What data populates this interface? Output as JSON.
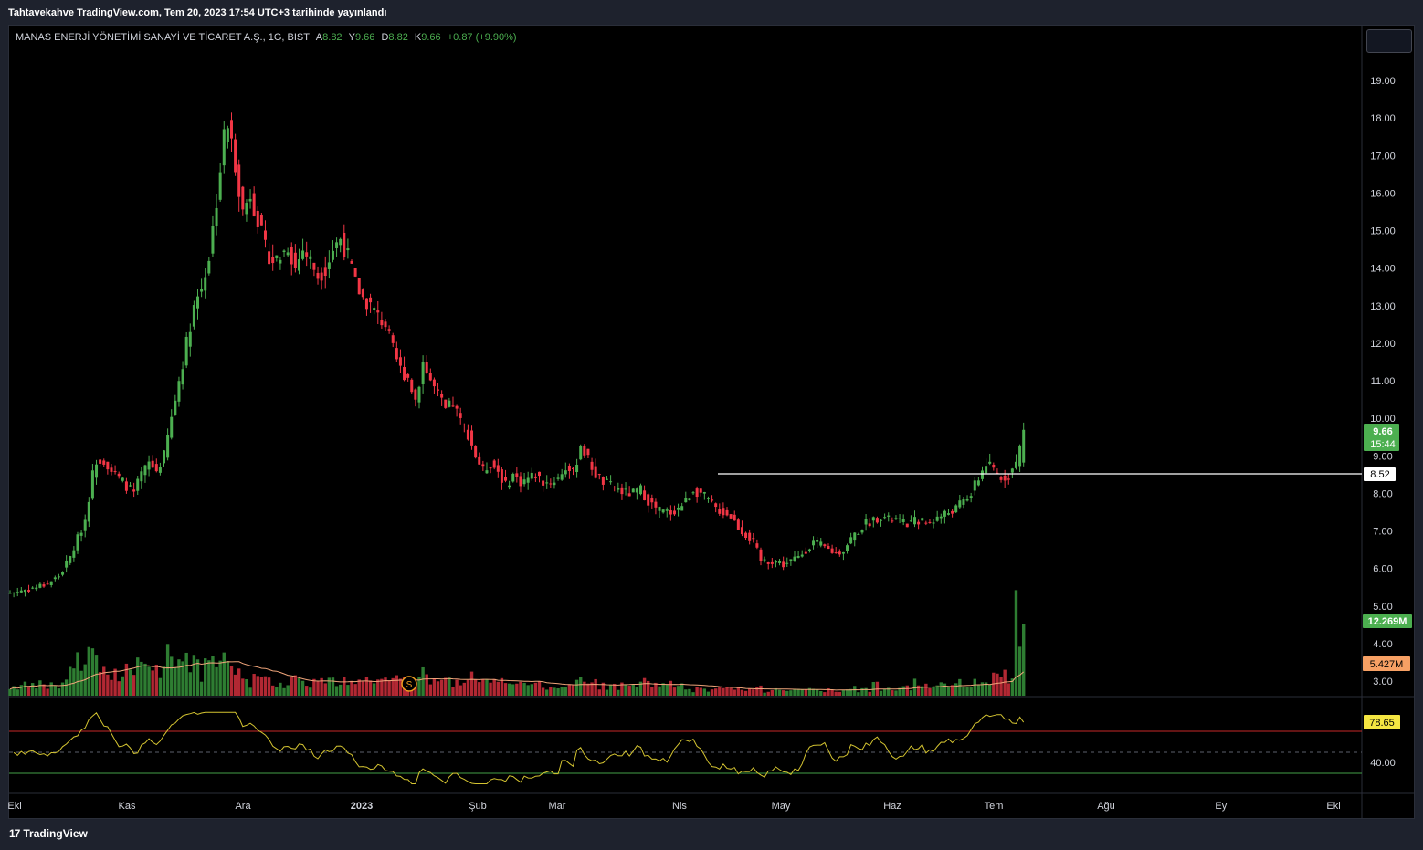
{
  "header": {
    "published": "Tahtavekahve TradingView.com, Tem 20, 2023 17:54 UTC+3 tarihinde yayınlandı"
  },
  "legend": {
    "symbol": "MANAS ENERJİ YÖNETİMİ SANAYİ VE TİCARET A.Ş., 1G, BIST",
    "open_label": "A",
    "open": "8.82",
    "high_label": "Y",
    "high": "9.66",
    "low_label": "D",
    "low": "8.82",
    "close_label": "K",
    "close": "9.66",
    "change": "+0.87 (+9.90%)"
  },
  "price_axis": {
    "ticks": [
      "19.00",
      "18.00",
      "17.00",
      "16.00",
      "15.00",
      "14.00",
      "13.00",
      "12.00",
      "11.00",
      "10.00",
      "9.00",
      "8.00",
      "7.00",
      "6.00",
      "5.00",
      "4.00",
      "3.00"
    ],
    "last_price": "9.66",
    "countdown": "15:44",
    "hline_price": "8.52",
    "volume_last": "12.269M",
    "volume_ma": "5.427M"
  },
  "rsi_axis": {
    "value": "78.65",
    "tick": "40.00"
  },
  "time_axis": {
    "labels": [
      "Eki",
      "Kas",
      "Ara",
      "2023",
      "Şub",
      "Mar",
      "Nis",
      "May",
      "Haz",
      "Tem",
      "Ağu",
      "Eyl",
      "Eki"
    ]
  },
  "event_marker": {
    "label": "S"
  },
  "footer": {
    "brand": "TradingView",
    "brand_mark": "17"
  },
  "colors": {
    "up": "#4caf50",
    "down": "#f23645",
    "vol_up": "#2e7d32",
    "vol_down": "#b22833",
    "rsi": "#d4c431",
    "vol_ma": "#f0a57a",
    "overbought": "#c62828",
    "oversold": "#43a047",
    "last_price_bg": "#4caf50",
    "rsi_label_bg": "#f5e642",
    "vol_ma_bg": "#f7a064"
  },
  "chart_data": {
    "type": "candlestick",
    "title": "MANAS ENERJİ YÖNETİMİ SANAYİ VE TİCARET A.Ş., 1G, BIST",
    "y_range": [
      2.7,
      19.8
    ],
    "hline": 8.52,
    "x_labels": [
      "Eki",
      "Kas",
      "Ara",
      "2023",
      "Şub",
      "Mar",
      "Nis",
      "May",
      "Haz",
      "Tem",
      "Ağu",
      "Eyl",
      "Eki"
    ],
    "close_anchors": [
      [
        0,
        5.35
      ],
      [
        7,
        5.5
      ],
      [
        10,
        5.6
      ],
      [
        13,
        5.8
      ],
      [
        16,
        6.3
      ],
      [
        18,
        6.8
      ],
      [
        20,
        7.3
      ],
      [
        22,
        8.5
      ],
      [
        23,
        8.9
      ],
      [
        25,
        8.9
      ],
      [
        27,
        8.6
      ],
      [
        29,
        8.4
      ],
      [
        31,
        8.2
      ],
      [
        33,
        8.0
      ],
      [
        35,
        8.5
      ],
      [
        37,
        8.8
      ],
      [
        39,
        8.6
      ],
      [
        41,
        9.0
      ],
      [
        43,
        10.0
      ],
      [
        45,
        11.0
      ],
      [
        47,
        12.0
      ],
      [
        49,
        13.0
      ],
      [
        51,
        13.5
      ],
      [
        53,
        14.3
      ],
      [
        55,
        15.8
      ],
      [
        57,
        17.5
      ],
      [
        58,
        17.8
      ],
      [
        60,
        16.8
      ],
      [
        62,
        15.5
      ],
      [
        64,
        16.0
      ],
      [
        66,
        15.3
      ],
      [
        68,
        14.5
      ],
      [
        70,
        14.2
      ],
      [
        72,
        14.3
      ],
      [
        74,
        14.6
      ],
      [
        76,
        14.0
      ],
      [
        78,
        14.5
      ],
      [
        80,
        14.2
      ],
      [
        82,
        13.8
      ],
      [
        84,
        14.0
      ],
      [
        86,
        14.5
      ],
      [
        88,
        14.8
      ],
      [
        90,
        14.3
      ],
      [
        92,
        13.6
      ],
      [
        94,
        13.2
      ],
      [
        96,
        13.0
      ],
      [
        98,
        12.7
      ],
      [
        100,
        12.5
      ],
      [
        102,
        11.8
      ],
      [
        104,
        11.3
      ],
      [
        106,
        11.1
      ],
      [
        108,
        10.5
      ],
      [
        110,
        11.5
      ],
      [
        112,
        11.0
      ],
      [
        114,
        10.6
      ],
      [
        116,
        10.2
      ],
      [
        118,
        10.4
      ],
      [
        120,
        9.9
      ],
      [
        122,
        9.6
      ],
      [
        124,
        9.0
      ],
      [
        126,
        8.6
      ],
      [
        128,
        8.8
      ],
      [
        130,
        8.6
      ],
      [
        132,
        8.2
      ],
      [
        134,
        8.5
      ],
      [
        136,
        8.3
      ],
      [
        138,
        8.4
      ],
      [
        140,
        8.5
      ],
      [
        142,
        8.3
      ],
      [
        144,
        8.3
      ],
      [
        146,
        8.4
      ],
      [
        148,
        8.7
      ],
      [
        150,
        8.5
      ],
      [
        152,
        9.3
      ],
      [
        154,
        8.9
      ],
      [
        156,
        8.5
      ],
      [
        158,
        8.3
      ],
      [
        160,
        8.2
      ],
      [
        162,
        8.1
      ],
      [
        164,
        8.0
      ],
      [
        166,
        8.0
      ],
      [
        168,
        8.1
      ],
      [
        170,
        7.8
      ],
      [
        172,
        7.6
      ],
      [
        174,
        7.5
      ],
      [
        176,
        7.5
      ],
      [
        178,
        7.6
      ],
      [
        180,
        7.8
      ],
      [
        182,
        8.1
      ],
      [
        184,
        8.0
      ],
      [
        186,
        7.8
      ],
      [
        188,
        7.6
      ],
      [
        190,
        7.5
      ],
      [
        192,
        7.4
      ],
      [
        194,
        7.1
      ],
      [
        196,
        6.9
      ],
      [
        198,
        6.7
      ],
      [
        200,
        6.2
      ],
      [
        202,
        6.2
      ],
      [
        204,
        6.2
      ],
      [
        206,
        6.1
      ],
      [
        208,
        6.2
      ],
      [
        210,
        6.3
      ],
      [
        212,
        6.5
      ],
      [
        214,
        6.7
      ],
      [
        216,
        6.6
      ],
      [
        218,
        6.5
      ],
      [
        220,
        6.4
      ],
      [
        222,
        6.5
      ],
      [
        224,
        6.8
      ],
      [
        226,
        7.0
      ],
      [
        228,
        7.2
      ],
      [
        230,
        7.3
      ],
      [
        232,
        7.4
      ],
      [
        234,
        7.3
      ],
      [
        236,
        7.3
      ],
      [
        238,
        7.2
      ],
      [
        240,
        7.2
      ],
      [
        242,
        7.3
      ],
      [
        244,
        7.2
      ],
      [
        246,
        7.3
      ],
      [
        248,
        7.4
      ],
      [
        250,
        7.5
      ],
      [
        252,
        7.6
      ],
      [
        254,
        7.8
      ],
      [
        256,
        8.0
      ],
      [
        258,
        8.4
      ],
      [
        260,
        8.8
      ],
      [
        262,
        8.6
      ],
      [
        264,
        8.4
      ],
      [
        266,
        8.5
      ],
      [
        268,
        8.8
      ],
      [
        270,
        9.66
      ]
    ],
    "volume_scale_note": "relative heights",
    "volume_ma": "Volume MA",
    "rsi_levels": [
      70,
      30
    ]
  }
}
